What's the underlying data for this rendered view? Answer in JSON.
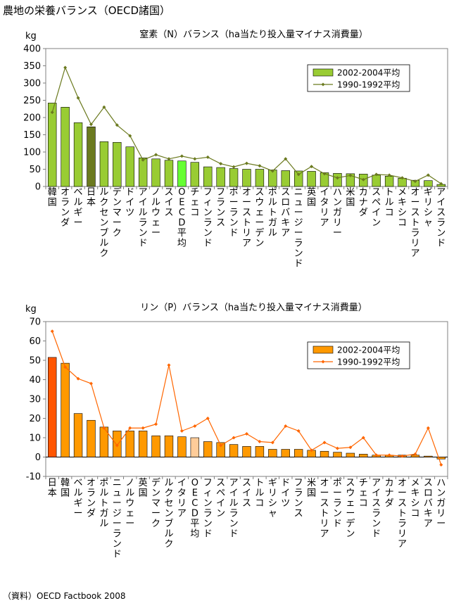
{
  "page_title": "農地の栄養バランス（OECD諸国）",
  "source": "（資料）OECD Factbook 2008",
  "chart_data": [
    {
      "type": "bar",
      "title": "窒素（N）バランス（ha当たり投入量マイナス消費量）",
      "ylabel": "kg",
      "ylim": [
        0,
        400
      ],
      "yticks": [
        0,
        50,
        100,
        150,
        200,
        250,
        300,
        350,
        400
      ],
      "grid": false,
      "legend_position": "top-right",
      "categories": [
        "韓国",
        "オランダ",
        "ベルギー",
        "日本",
        "ルクセンブルク",
        "デンマーク",
        "ドイツ",
        "アイルランド",
        "ノルウェー",
        "スイス",
        "OECD平均",
        "チェコ",
        "フィンランド",
        "フランス",
        "ポーランド",
        "オーストリア",
        "スウェーデン",
        "ポルトガル",
        "スロバキア",
        "ニュージーランド",
        "英国",
        "イタリア",
        "ハンガリー",
        "米国",
        "カナダ",
        "スペイン",
        "トルコ",
        "メキシコ",
        "オーストラリア",
        "ギリシャ",
        "アイスランド"
      ],
      "series": [
        {
          "name": "2002-2004平均",
          "kind": "bar",
          "color": "#99cc33",
          "highlight": {
            "日本": "#6b7a1f",
            "OECD平均": "#66ff33"
          },
          "values": [
            242,
            230,
            185,
            173,
            130,
            128,
            115,
            83,
            80,
            76,
            74,
            70,
            57,
            55,
            52,
            50,
            50,
            48,
            46,
            45,
            44,
            40,
            38,
            37,
            36,
            33,
            30,
            24,
            18,
            17,
            6
          ]
        },
        {
          "name": "1990-1992平均",
          "kind": "line",
          "color": "#6b7a1f",
          "values": [
            215,
            345,
            257,
            180,
            230,
            178,
            147,
            77,
            92,
            80,
            88,
            80,
            85,
            66,
            57,
            67,
            60,
            45,
            80,
            35,
            58,
            37,
            25,
            32,
            20,
            35,
            33,
            25,
            15,
            33,
            8
          ]
        }
      ]
    },
    {
      "type": "bar",
      "title": "リン（P）バランス（ha当たり投入量マイナス消費量）",
      "ylabel": "kg",
      "ylim": [
        -10,
        70
      ],
      "yticks": [
        -10,
        0,
        10,
        20,
        30,
        40,
        50,
        60,
        70
      ],
      "grid": false,
      "legend_position": "top-right",
      "categories": [
        "日本",
        "韓国",
        "ベルギー",
        "オランダ",
        "ポルトガル",
        "ニュージーランド",
        "ノルウェー",
        "英国",
        "デンマーク",
        "ルクセンブルク",
        "イタリア",
        "OECD平均",
        "フィンランド",
        "スペイン",
        "アイルランド",
        "スイス",
        "トルコ",
        "ギリシャ",
        "ドイツ",
        "フランス",
        "米国",
        "オーストリア",
        "ポーランド",
        "スウェーデン",
        "チェコ",
        "アイスランド",
        "カナダ",
        "オーストラリア",
        "メキシコ",
        "スロバキア",
        "ハンガリー"
      ],
      "series": [
        {
          "name": "2002-2004平均",
          "kind": "bar",
          "color": "#ff9900",
          "highlight": {
            "日本": "#ff5500",
            "OECD平均": "#ffcc99"
          },
          "values": [
            51.5,
            48.5,
            22.5,
            19,
            15.5,
            13.5,
            13.5,
            13.5,
            11,
            11,
            10.5,
            10,
            8,
            7.5,
            6.5,
            5.5,
            5.5,
            4,
            4,
            4,
            3.5,
            3,
            2.5,
            2,
            1.5,
            1,
            1,
            1,
            1,
            0.5,
            -1
          ]
        },
        {
          "name": "1990-1992平均",
          "kind": "line",
          "color": "#ff6600",
          "values": [
            65,
            46.5,
            40.5,
            38,
            15,
            6,
            15,
            15,
            17,
            47.5,
            13.5,
            16,
            20,
            6,
            10,
            12,
            8,
            7.5,
            16,
            13.5,
            3.5,
            7.5,
            4.5,
            5,
            10,
            1,
            1,
            0.5,
            1.5,
            15,
            -4
          ]
        }
      ]
    }
  ]
}
